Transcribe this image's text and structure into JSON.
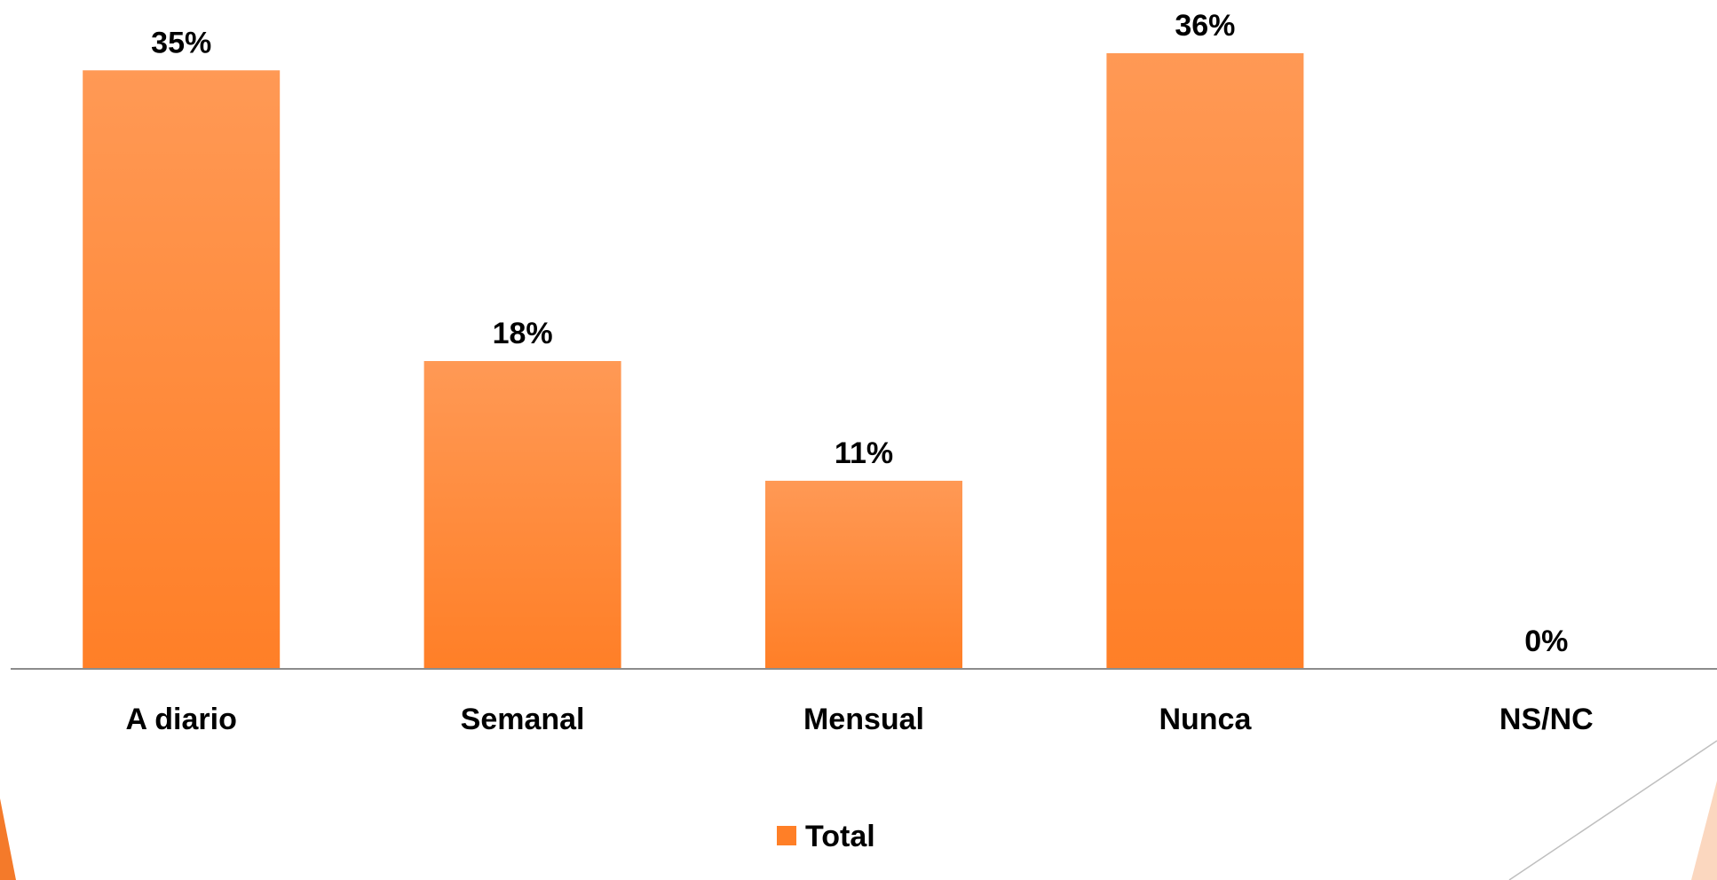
{
  "colors": {
    "bar_top": "#FF9955",
    "bar_bottom": "#FF7F27",
    "axis": "#8C8C8C",
    "text": "#000000",
    "decor_fill": "#FBD7BF",
    "decor_fill_strong": "#F47A2A",
    "decor_line": "#BFBFBF"
  },
  "chart_data": {
    "type": "bar",
    "categories": [
      "A diario",
      "Semanal",
      "Mensual",
      "Nunca",
      "NS/NC"
    ],
    "series": [
      {
        "name": "Total",
        "values": [
          35,
          18,
          11,
          36,
          0
        ]
      }
    ],
    "value_labels": [
      "35%",
      "18%",
      "11%",
      "36%",
      "0%"
    ],
    "unit": "%",
    "ylim": [
      0,
      36
    ],
    "grid": false,
    "legend": {
      "position": "bottom",
      "entries": [
        "Total"
      ]
    },
    "title": "",
    "xlabel": "",
    "ylabel": ""
  }
}
